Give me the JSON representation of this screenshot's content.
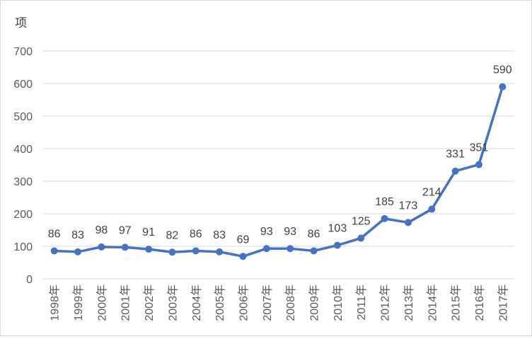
{
  "chart_data": {
    "type": "line",
    "ylabel": "项",
    "ylim": [
      0,
      700
    ],
    "yticks": [
      0,
      100,
      200,
      300,
      400,
      500,
      600,
      700
    ],
    "grid": true,
    "categories": [
      "1998年",
      "1999年",
      "2000年",
      "2001年",
      "2002年",
      "2003年",
      "2004年",
      "2005年",
      "2006年",
      "2007年",
      "2008年",
      "2009年",
      "2010年",
      "2011年",
      "2012年",
      "2013年",
      "2014年",
      "2015年",
      "2016年",
      "2017年"
    ],
    "series": [
      {
        "values": [
          86,
          83,
          98,
          97,
          91,
          82,
          86,
          83,
          69,
          93,
          93,
          86,
          103,
          125,
          185,
          173,
          214,
          331,
          351,
          590
        ],
        "color": "#4472c4"
      }
    ]
  }
}
